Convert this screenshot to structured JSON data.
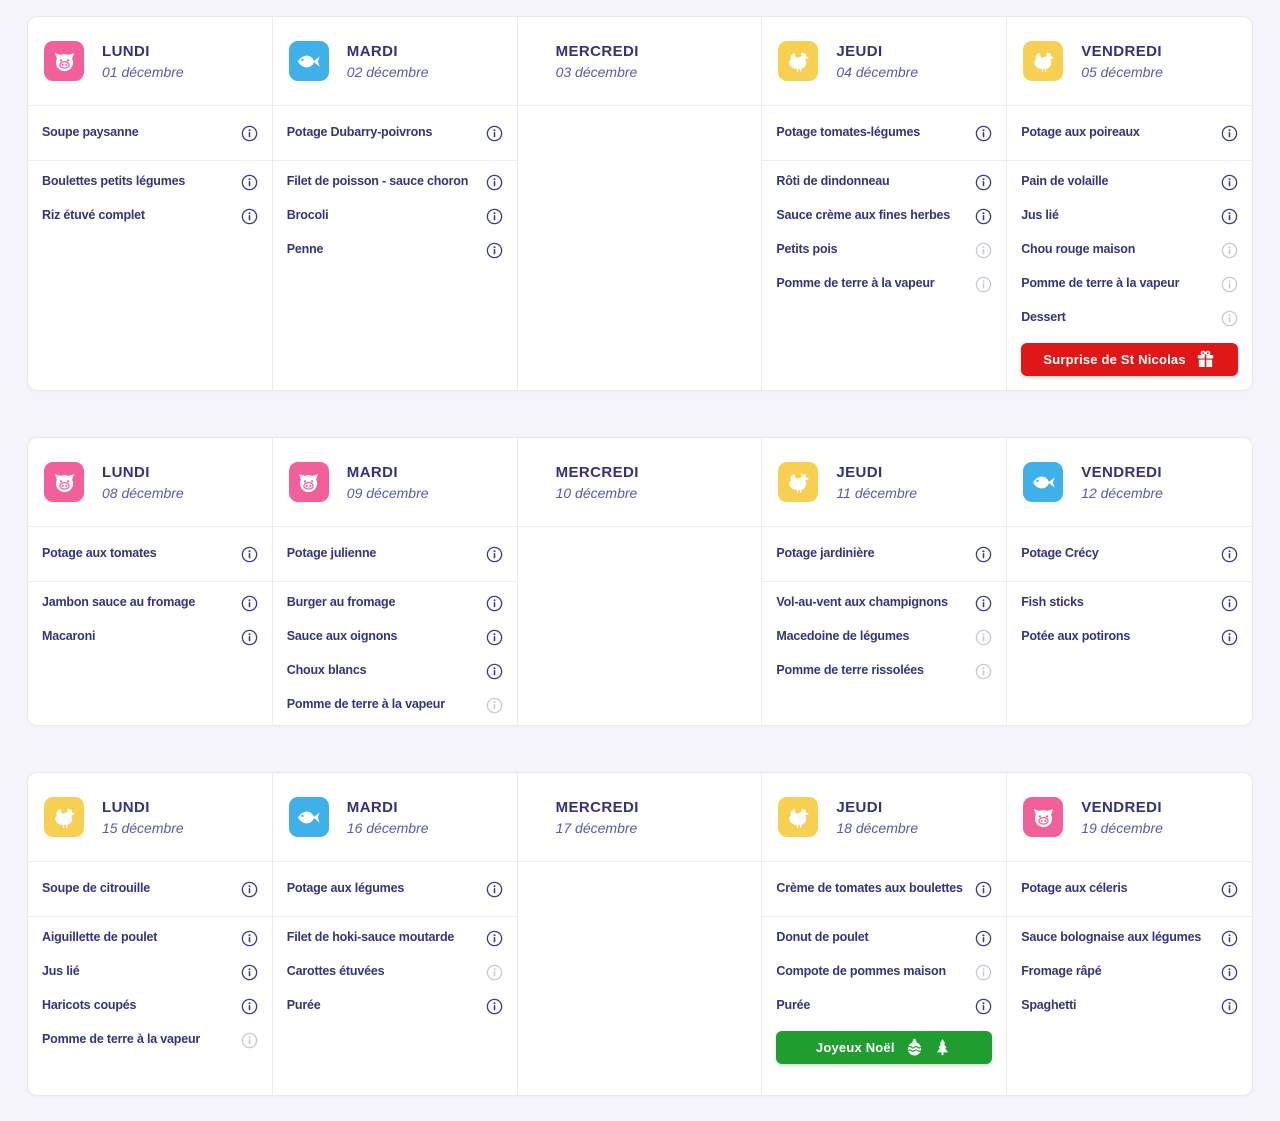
{
  "colors": {
    "tile_pork": "#f2609b",
    "tile_fish": "#3fb1e8",
    "tile_poultry": "#f7d052",
    "info_dark": "#3b3b8a",
    "info_gray": "#c9c9d4",
    "day_name": "#32327d",
    "day_date": "#5a5aa8",
    "item_text": "#34347f",
    "button_red": "#e01717",
    "button_green": "#1f9d2e"
  },
  "weeks": [
    {
      "days": [
        {
          "name": "LUNDI",
          "date": "01 décembre",
          "icon": "pork",
          "soup": {
            "label": "Soupe paysanne",
            "info": "dark"
          },
          "items": [
            {
              "label": "Boulettes petits légumes",
              "info": "dark"
            },
            {
              "label": "Riz étuvé complet",
              "info": "dark"
            }
          ],
          "button": null
        },
        {
          "name": "MARDI",
          "date": "02 décembre",
          "icon": "fish",
          "soup": {
            "label": "Potage Dubarry-poivrons",
            "info": "dark"
          },
          "items": [
            {
              "label": "Filet de poisson - sauce choron",
              "info": "dark"
            },
            {
              "label": "Brocoli",
              "info": "dark"
            },
            {
              "label": "Penne",
              "info": "dark"
            }
          ],
          "button": null
        },
        {
          "name": "MERCREDI",
          "date": "03 décembre",
          "icon": null,
          "soup": null,
          "items": [],
          "button": null
        },
        {
          "name": "JEUDI",
          "date": "04 décembre",
          "icon": "poultry",
          "soup": {
            "label": "Potage tomates-légumes",
            "info": "dark"
          },
          "items": [
            {
              "label": "Rôti de dindonneau",
              "info": "dark"
            },
            {
              "label": "Sauce crème aux fines herbes",
              "info": "dark"
            },
            {
              "label": "Petits pois",
              "info": "gray"
            },
            {
              "label": "Pomme de terre à la vapeur",
              "info": "gray"
            }
          ],
          "button": null
        },
        {
          "name": "VENDREDI",
          "date": "05 décembre",
          "icon": "poultry",
          "soup": {
            "label": "Potage aux poireaux",
            "info": "dark"
          },
          "items": [
            {
              "label": "Pain de volaille",
              "info": "dark"
            },
            {
              "label": "Jus lié",
              "info": "dark"
            },
            {
              "label": "Chou rouge maison",
              "info": "gray"
            },
            {
              "label": "Pomme de terre à la vapeur",
              "info": "gray"
            },
            {
              "label": "Dessert",
              "info": "gray"
            }
          ],
          "button": {
            "label": "Surprise de St Nicolas",
            "color": "#e01717",
            "icons": [
              "gift"
            ]
          }
        }
      ]
    },
    {
      "days": [
        {
          "name": "LUNDI",
          "date": "08 décembre",
          "icon": "pork",
          "soup": {
            "label": "Potage aux tomates",
            "info": "dark"
          },
          "items": [
            {
              "label": "Jambon sauce au fromage",
              "info": "dark"
            },
            {
              "label": "Macaroni",
              "info": "dark"
            }
          ],
          "button": null
        },
        {
          "name": "MARDI",
          "date": "09 décembre",
          "icon": "pork",
          "soup": {
            "label": "Potage julienne",
            "info": "dark"
          },
          "items": [
            {
              "label": "Burger au fromage",
              "info": "dark"
            },
            {
              "label": "Sauce aux oignons",
              "info": "dark"
            },
            {
              "label": "Choux blancs",
              "info": "dark"
            },
            {
              "label": "Pomme de terre à la vapeur",
              "info": "gray"
            }
          ],
          "button": null
        },
        {
          "name": "MERCREDI",
          "date": "10 décembre",
          "icon": null,
          "soup": null,
          "items": [],
          "button": null
        },
        {
          "name": "JEUDI",
          "date": "11 décembre",
          "icon": "poultry",
          "soup": {
            "label": "Potage jardinière",
            "info": "dark"
          },
          "items": [
            {
              "label": "Vol-au-vent aux champignons",
              "info": "dark"
            },
            {
              "label": "Macedoine de légumes",
              "info": "gray"
            },
            {
              "label": "Pomme de terre rissolées",
              "info": "gray"
            }
          ],
          "button": null
        },
        {
          "name": "VENDREDI",
          "date": "12 décembre",
          "icon": "fish",
          "soup": {
            "label": "Potage Crécy",
            "info": "dark"
          },
          "items": [
            {
              "label": "Fish sticks",
              "info": "dark"
            },
            {
              "label": "Potée aux potirons",
              "info": "dark"
            }
          ],
          "button": null
        }
      ]
    },
    {
      "days": [
        {
          "name": "LUNDI",
          "date": "15 décembre",
          "icon": "poultry",
          "soup": {
            "label": "Soupe de citrouille",
            "info": "dark"
          },
          "items": [
            {
              "label": "Aiguillette de poulet",
              "info": "dark"
            },
            {
              "label": "Jus lié",
              "info": "dark"
            },
            {
              "label": "Haricots coupés",
              "info": "dark"
            },
            {
              "label": "Pomme de terre à la vapeur",
              "info": "gray"
            }
          ],
          "button": null
        },
        {
          "name": "MARDI",
          "date": "16 décembre",
          "icon": "fish",
          "soup": {
            "label": "Potage aux légumes",
            "info": "dark"
          },
          "items": [
            {
              "label": "Filet de hoki-sauce moutarde",
              "info": "dark"
            },
            {
              "label": "Carottes étuvées",
              "info": "gray"
            },
            {
              "label": "Purée",
              "info": "dark"
            }
          ],
          "button": null
        },
        {
          "name": "MERCREDI",
          "date": "17 décembre",
          "icon": null,
          "soup": null,
          "items": [],
          "button": null
        },
        {
          "name": "JEUDI",
          "date": "18 décembre",
          "icon": "poultry",
          "soup": {
            "label": "Crème de tomates aux boulettes",
            "info": "dark"
          },
          "items": [
            {
              "label": "Donut de poulet",
              "info": "dark"
            },
            {
              "label": "Compote de pommes maison",
              "info": "gray"
            },
            {
              "label": "Purée",
              "info": "dark"
            }
          ],
          "button": {
            "label": "Joyeux Noël",
            "color": "#1f9d2e",
            "icons": [
              "ornament",
              "tree"
            ]
          }
        },
        {
          "name": "VENDREDI",
          "date": "19 décembre",
          "icon": "pork",
          "soup": {
            "label": "Potage aux céleris",
            "info": "dark"
          },
          "items": [
            {
              "label": "Sauce bolognaise aux légumes",
              "info": "dark"
            },
            {
              "label": "Fromage râpé",
              "info": "dark"
            },
            {
              "label": "Spaghetti",
              "info": "dark"
            }
          ],
          "button": null
        }
      ]
    }
  ]
}
